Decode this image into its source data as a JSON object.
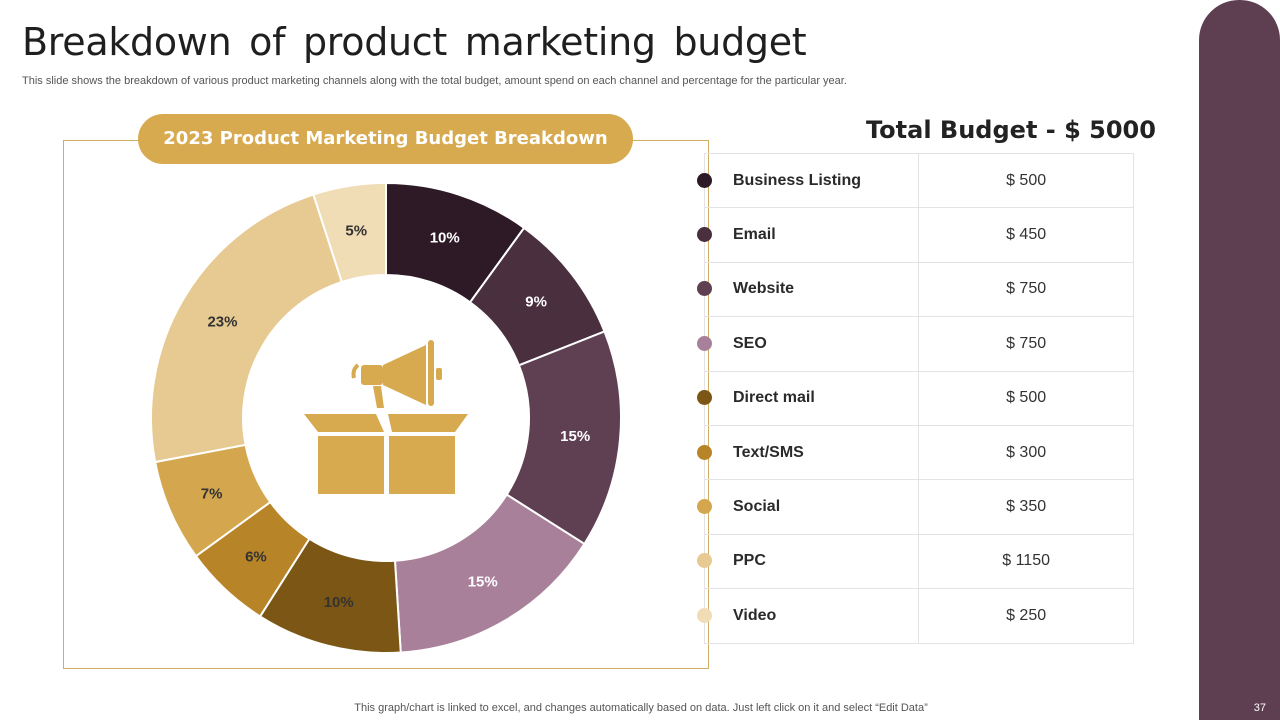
{
  "slide": {
    "title": "Breakdown  of product  marketing  budget",
    "subtitle": "This slide shows the breakdown of various product marketing channels along with the total budget, amount spend on each channel and percentage for the particular year.",
    "footnote": "This graph/chart is linked to excel,  and changes automatically based on data. Just left click on it and select “Edit Data”",
    "page_number": "37",
    "accent_color": "#5e3f51",
    "highlight_color": "#d8aa50"
  },
  "chart_title": "2023 Product Marketing Budget Breakdown",
  "total_budget": "Total Budget - $ 5000",
  "center_icon": "megaphone-box-icon",
  "chart_data": {
    "type": "pie",
    "variant": "donut",
    "categories": [
      "Business Listing",
      "Email",
      "Website",
      "SEO",
      "Direct mail",
      "Text/SMS",
      "Social",
      "PPC",
      "Video"
    ],
    "values": [
      500,
      450,
      750,
      750,
      500,
      300,
      350,
      1150,
      250
    ],
    "percent_labels": [
      "10%",
      "9%",
      "15%",
      "15%",
      "10%",
      "6%",
      "7%",
      "23%",
      "5%"
    ],
    "amount_labels": [
      "$ 500",
      "$ 450",
      "$ 750",
      "$ 750",
      "$ 500",
      "$ 300",
      "$ 350",
      "$ 1150",
      "$ 250"
    ],
    "colors": [
      "#2e1a26",
      "#4a2f3e",
      "#5f3f52",
      "#a98099",
      "#7b5614",
      "#b78427",
      "#d4a74f",
      "#e7c992",
      "#f0dcb5"
    ],
    "label_colors": [
      "#ffffff",
      "#ffffff",
      "#ffffff",
      "#ffffff",
      "#333333",
      "#333333",
      "#333333",
      "#333333",
      "#333333"
    ],
    "start_angle_deg": 0,
    "direction": "clockwise",
    "legend": "right"
  }
}
